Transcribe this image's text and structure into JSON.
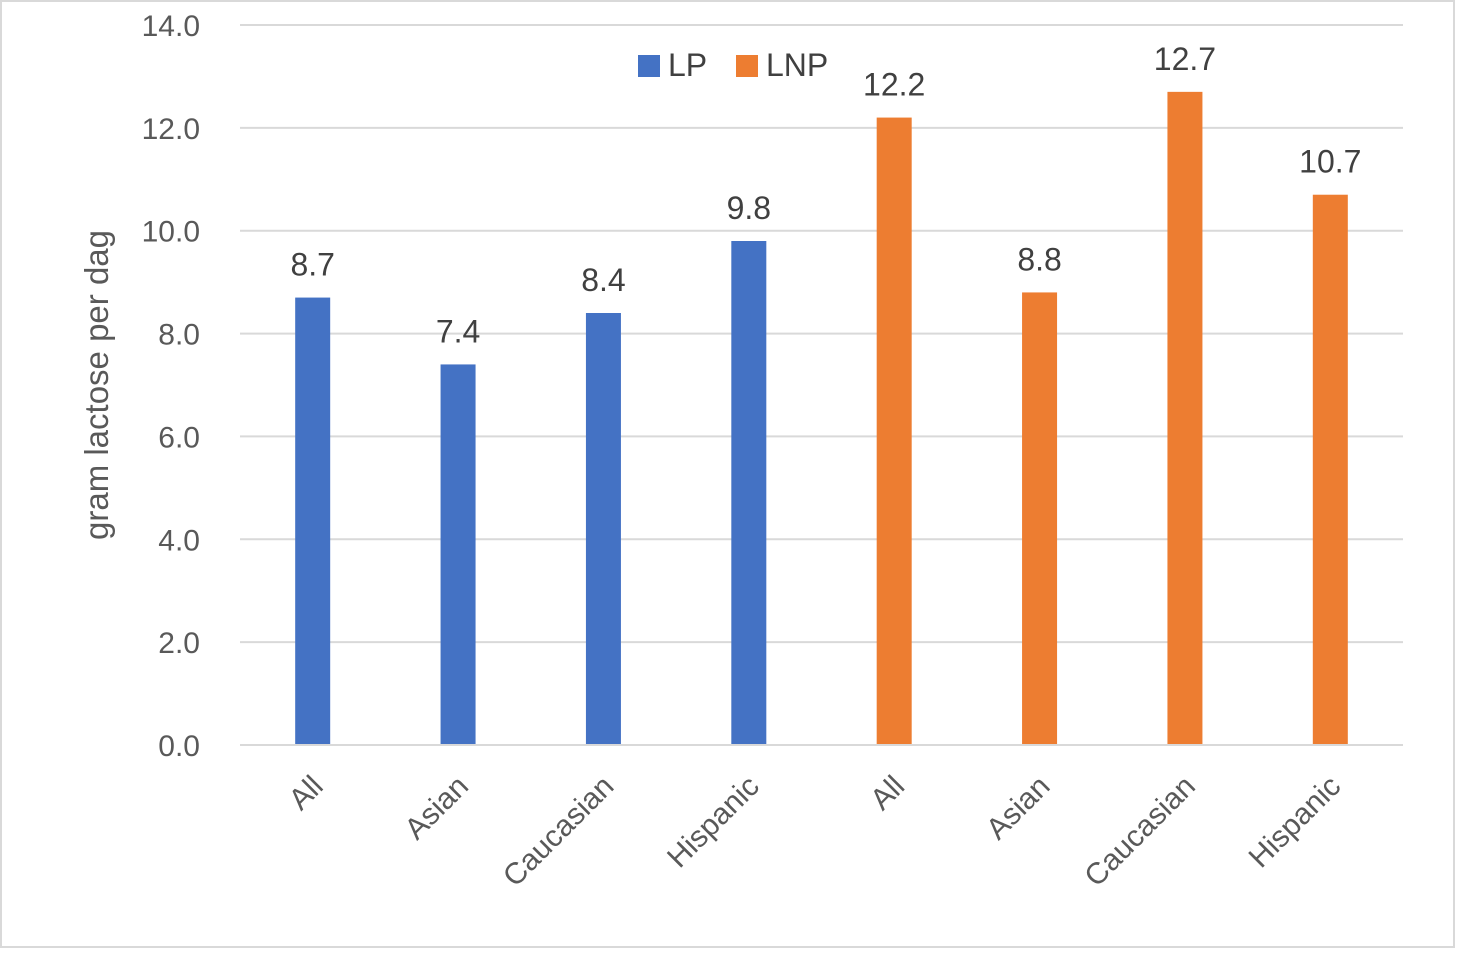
{
  "chart_data": {
    "type": "bar",
    "ylabel": "gram lactose per dag",
    "ylim": [
      0,
      14
    ],
    "yticks": [
      "0.0",
      "2.0",
      "4.0",
      "6.0",
      "8.0",
      "10.0",
      "12.0",
      "14.0"
    ],
    "grid": true,
    "legend_position": "top-center",
    "series": [
      {
        "name": "LP",
        "color": "#4472C4",
        "categories": [
          "All",
          "Asian",
          "Caucasian",
          "Hispanic"
        ],
        "values": [
          8.7,
          7.4,
          8.4,
          9.8
        ],
        "labels": [
          "8.7",
          "7.4",
          "8.4",
          "9.8"
        ]
      },
      {
        "name": "LNP",
        "color": "#ED7D31",
        "categories": [
          "All",
          "Asian",
          "Caucasian",
          "Hispanic"
        ],
        "values": [
          12.2,
          8.8,
          12.7,
          10.7
        ],
        "labels": [
          "12.2",
          "8.8",
          "12.7",
          "10.7"
        ]
      }
    ]
  }
}
